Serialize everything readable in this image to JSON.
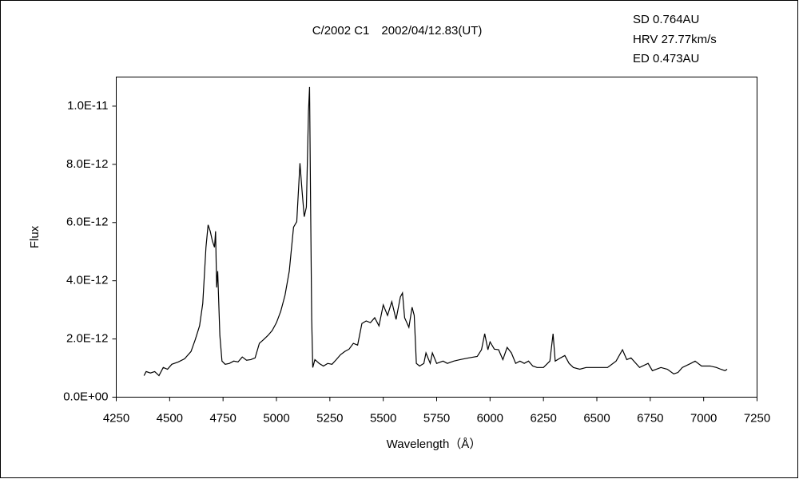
{
  "chart_data": {
    "type": "line",
    "title": "C/2002 C1　2002/04/12.83(UT)",
    "annotations": [
      "SD 0.764AU",
      "HRV 27.77km/s",
      "ED 0.473AU"
    ],
    "x_label": "Wavelength（Å）",
    "y_label": "Flux",
    "xlim": [
      4250,
      7250
    ],
    "xticks": [
      4250,
      4500,
      4750,
      5000,
      5250,
      5500,
      5750,
      6000,
      6250,
      6500,
      6750,
      7000,
      7250
    ],
    "ylim": [
      0,
      1.1e-11
    ],
    "yticks": [
      {
        "value": 0,
        "label": "0.0E+00"
      },
      {
        "value": 2e-12,
        "label": "2.0E-12"
      },
      {
        "value": 4e-12,
        "label": "4.0E-12"
      },
      {
        "value": 6e-12,
        "label": "6.0E-12"
      },
      {
        "value": 8e-12,
        "label": "8.0E-12"
      },
      {
        "value": 1e-11,
        "label": "1.0E-11"
      }
    ],
    "grid": false,
    "series": [
      {
        "color": "#000000",
        "x": [
          4380,
          4390,
          4410,
          4430,
          4450,
          4470,
          4490,
          4510,
          4540,
          4570,
          4600,
          4620,
          4640,
          4655,
          4670,
          4680,
          4690,
          4700,
          4710,
          4715,
          4720,
          4725,
          4735,
          4745,
          4760,
          4780,
          4800,
          4820,
          4840,
          4860,
          4880,
          4900,
          4920,
          4940,
          4960,
          4980,
          5000,
          5020,
          5040,
          5060,
          5080,
          5095,
          5110,
          5120,
          5130,
          5140,
          5150,
          5155,
          5160,
          5165,
          5170,
          5180,
          5200,
          5220,
          5240,
          5260,
          5280,
          5300,
          5320,
          5340,
          5360,
          5380,
          5400,
          5420,
          5440,
          5460,
          5480,
          5500,
          5520,
          5540,
          5560,
          5580,
          5590,
          5600,
          5620,
          5635,
          5645,
          5655,
          5670,
          5690,
          5700,
          5720,
          5730,
          5750,
          5780,
          5800,
          5830,
          5860,
          5900,
          5940,
          5960,
          5975,
          5990,
          6000,
          6020,
          6040,
          6060,
          6080,
          6100,
          6120,
          6140,
          6160,
          6180,
          6200,
          6220,
          6250,
          6280,
          6295,
          6305,
          6330,
          6350,
          6370,
          6390,
          6420,
          6450,
          6500,
          6550,
          6590,
          6620,
          6640,
          6660,
          6700,
          6740,
          6760,
          6800,
          6830,
          6860,
          6880,
          6900,
          6940,
          6960,
          6990,
          7030,
          7060,
          7080,
          7100,
          7110
        ],
        "values": [
          7.4e-13,
          8.8e-13,
          8.3e-13,
          8.8e-13,
          7.4e-13,
          1.02e-12,
          9.6e-13,
          1.13e-12,
          1.21e-12,
          1.32e-12,
          1.57e-12,
          1.98e-12,
          2.45e-12,
          3.22e-12,
          5.15e-12,
          5.92e-12,
          5.7e-12,
          5.37e-12,
          5.15e-12,
          5.7e-12,
          3.77e-12,
          4.33e-12,
          2.12e-12,
          1.24e-12,
          1.13e-12,
          1.16e-12,
          1.24e-12,
          1.21e-12,
          1.38e-12,
          1.27e-12,
          1.29e-12,
          1.35e-12,
          1.85e-12,
          1.98e-12,
          2.12e-12,
          2.29e-12,
          2.56e-12,
          2.95e-12,
          3.5e-12,
          4.33e-12,
          5.84e-12,
          6.03e-12,
          8.04e-12,
          7.08e-12,
          6.2e-12,
          6.53e-12,
          9.83e-12,
          1.066e-11,
          6.53e-12,
          2.67e-12,
          1.02e-12,
          1.29e-12,
          1.16e-12,
          1.07e-12,
          1.16e-12,
          1.13e-12,
          1.29e-12,
          1.46e-12,
          1.57e-12,
          1.65e-12,
          1.85e-12,
          1.79e-12,
          2.53e-12,
          2.62e-12,
          2.56e-12,
          2.73e-12,
          2.45e-12,
          3.17e-12,
          2.81e-12,
          3.28e-12,
          2.67e-12,
          3.44e-12,
          3.58e-12,
          2.73e-12,
          2.4e-12,
          3.09e-12,
          2.81e-12,
          1.16e-12,
          1.07e-12,
          1.16e-12,
          1.52e-12,
          1.16e-12,
          1.52e-12,
          1.16e-12,
          1.24e-12,
          1.16e-12,
          1.24e-12,
          1.29e-12,
          1.35e-12,
          1.4e-12,
          1.63e-12,
          2.18e-12,
          1.63e-12,
          1.9e-12,
          1.65e-12,
          1.63e-12,
          1.29e-12,
          1.71e-12,
          1.52e-12,
          1.16e-12,
          1.24e-12,
          1.16e-12,
          1.24e-12,
          1.07e-12,
          1.02e-12,
          1.02e-12,
          1.24e-12,
          2.18e-12,
          1.24e-12,
          1.35e-12,
          1.43e-12,
          1.16e-12,
          1.02e-12,
          9.6e-13,
          1.02e-12,
          1.02e-12,
          1.02e-12,
          1.24e-12,
          1.63e-12,
          1.29e-12,
          1.35e-12,
          1.02e-12,
          1.16e-12,
          9.1e-13,
          1.02e-12,
          9.6e-13,
          8e-13,
          8.5e-13,
          1.02e-12,
          1.16e-12,
          1.24e-12,
          1.07e-12,
          1.07e-12,
          1.02e-12,
          9.6e-13,
          9.1e-13,
          9.6e-13
        ]
      }
    ]
  }
}
